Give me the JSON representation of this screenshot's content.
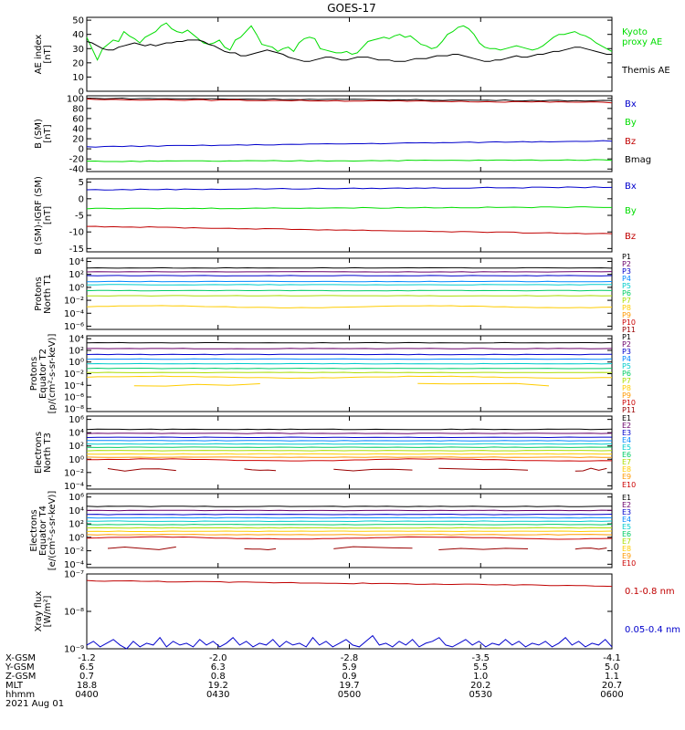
{
  "title": "GOES-17",
  "colors": {
    "black": "#000000",
    "red": "#c00000",
    "green": "#00dd00",
    "blue": "#0000cc",
    "p_colors": [
      "#000000",
      "#6a006a",
      "#0000cc",
      "#0088ff",
      "#00cccc",
      "#00cc66",
      "#aadd00",
      "#ffcc00",
      "#ff9900",
      "#cc0000",
      "#990000"
    ]
  },
  "chart_data": [
    {
      "id": "ae",
      "type": "line",
      "ylabel": [
        "AE index",
        "[nT]"
      ],
      "yticks": [
        "0",
        "10",
        "20",
        "30",
        "40",
        "50"
      ],
      "ylim": [
        0,
        52
      ],
      "legend": [
        {
          "text": "Kyoto",
          "color": "#00dd00"
        },
        {
          "text": "proxy AE",
          "color": "#00dd00"
        },
        {
          "text": "Themis AE",
          "color": "#000000"
        }
      ],
      "series": [
        {
          "color": "#00dd00",
          "values": [
            38,
            30,
            22,
            30,
            33,
            36,
            35,
            42,
            39,
            37,
            34,
            38,
            40,
            42,
            46,
            48,
            44,
            42,
            41,
            43,
            40,
            37,
            34,
            33,
            34,
            36,
            31,
            29,
            36,
            38,
            42,
            46,
            40,
            33,
            32,
            31,
            28,
            30,
            31,
            28,
            34,
            37,
            38,
            37,
            30,
            29,
            28,
            27,
            27,
            28,
            26,
            27,
            31,
            35,
            36,
            37,
            38,
            37,
            39,
            40,
            38,
            39,
            36,
            33,
            32,
            30,
            31,
            35,
            40,
            42,
            45,
            46,
            44,
            40,
            34,
            31,
            30,
            30,
            29,
            30,
            31,
            32,
            31,
            30,
            29,
            30,
            32,
            35,
            38,
            40,
            40,
            41,
            42,
            40,
            39,
            37,
            34,
            32,
            30,
            28
          ]
        },
        {
          "color": "#000000",
          "values": [
            35,
            34,
            32,
            30,
            29,
            29,
            31,
            32,
            33,
            34,
            33,
            32,
            33,
            32,
            33,
            34,
            34,
            35,
            35,
            36,
            36,
            36,
            35,
            33,
            32,
            30,
            28,
            27,
            27,
            25,
            25,
            26,
            27,
            28,
            29,
            28,
            27,
            26,
            24,
            23,
            22,
            21,
            21,
            22,
            23,
            24,
            24,
            23,
            22,
            22,
            23,
            24,
            24,
            24,
            23,
            22,
            22,
            22,
            21,
            21,
            21,
            22,
            23,
            23,
            23,
            24,
            25,
            25,
            25,
            26,
            26,
            25,
            24,
            23,
            22,
            21,
            21,
            22,
            22,
            23,
            24,
            25,
            24,
            24,
            25,
            26,
            26,
            27,
            28,
            28,
            29,
            30,
            31,
            31,
            30,
            29,
            28,
            27,
            26,
            26
          ]
        }
      ]
    },
    {
      "id": "bsm",
      "type": "line",
      "ylabel": [
        "B (SM)",
        "[nT]"
      ],
      "yticks": [
        "-40",
        "-20",
        "0",
        "20",
        "40",
        "60",
        "80",
        "100"
      ],
      "ylim": [
        -45,
        105
      ],
      "legend": [
        {
          "text": "Bx",
          "color": "#0000cc"
        },
        {
          "text": "By",
          "color": "#00dd00"
        },
        {
          "text": "Bz",
          "color": "#c00000"
        },
        {
          "text": "Bmag",
          "color": "#000000"
        }
      ],
      "series": [
        {
          "color": "#000000",
          "from": 100,
          "to": 95
        },
        {
          "color": "#c00000",
          "from": 98,
          "to": 92
        },
        {
          "color": "#0000cc",
          "from": 4,
          "to": 16
        },
        {
          "color": "#00dd00",
          "from": -25,
          "to": -22
        }
      ]
    },
    {
      "id": "bigrf",
      "type": "line",
      "ylabel": [
        "B (SM)-IGRF (SM)",
        "[nT]"
      ],
      "yticks": [
        "-15",
        "-10",
        "-5",
        "0",
        "5"
      ],
      "ylim": [
        -16,
        6
      ],
      "legend": [
        {
          "text": "Bx",
          "color": "#0000cc"
        },
        {
          "text": "By",
          "color": "#00dd00"
        },
        {
          "text": "Bz",
          "color": "#c00000"
        }
      ],
      "series": [
        {
          "color": "#0000cc",
          "from": 2.7,
          "to": 3.5
        },
        {
          "color": "#00dd00",
          "from": -3.0,
          "to": -2.5
        },
        {
          "color": "#c00000",
          "from": -8.3,
          "to": -10.6
        }
      ]
    },
    {
      "id": "pt1",
      "type": "line",
      "log": true,
      "ylabel": [
        "Protons",
        "North T1"
      ],
      "yticks": [
        "10⁴",
        "10²",
        "10⁰",
        "10⁻²",
        "10⁻⁴",
        "10⁻⁶"
      ],
      "ylim": [
        -6.5,
        4.5
      ],
      "legend": [
        {
          "text": "P1",
          "color": "#000000"
        },
        {
          "text": "P2",
          "color": "#6a006a"
        },
        {
          "text": "P3",
          "color": "#0000cc"
        },
        {
          "text": "P4",
          "color": "#0088ff"
        },
        {
          "text": "P5",
          "color": "#00cccc"
        },
        {
          "text": "P6",
          "color": "#00cc66"
        },
        {
          "text": "P7",
          "color": "#aadd00"
        },
        {
          "text": "P8",
          "color": "#ffcc00"
        },
        {
          "text": "P9",
          "color": "#ff9900"
        },
        {
          "text": "P10",
          "color": "#cc0000"
        },
        {
          "text": "P11",
          "color": "#990000"
        }
      ],
      "levels": [
        3.0,
        2.4,
        1.8,
        0.9,
        0.4,
        -0.5,
        -1.3,
        -3.0
      ]
    },
    {
      "id": "pt2",
      "type": "line",
      "log": true,
      "ylabel": [
        "Protons",
        "Equator T2",
        "[p/(cm²-s-sr-keV)]"
      ],
      "yticks": [
        "10⁴",
        "10²",
        "10⁰",
        "10⁻²",
        "10⁻⁴",
        "10⁻⁶",
        "10⁻⁸"
      ],
      "ylim": [
        -8.5,
        4.5
      ],
      "legend": [
        {
          "text": "P1",
          "color": "#000000"
        },
        {
          "text": "P2",
          "color": "#6a006a"
        },
        {
          "text": "P3",
          "color": "#0000cc"
        },
        {
          "text": "P4",
          "color": "#0088ff"
        },
        {
          "text": "P5",
          "color": "#00cccc"
        },
        {
          "text": "P6",
          "color": "#00cc66"
        },
        {
          "text": "P7",
          "color": "#aadd00"
        },
        {
          "text": "P8",
          "color": "#ffcc00"
        },
        {
          "text": "P9",
          "color": "#ff9900"
        },
        {
          "text": "P10",
          "color": "#cc0000"
        },
        {
          "text": "P11",
          "color": "#990000"
        }
      ],
      "levels": [
        3.3,
        2.3,
        1.3,
        0.5,
        -0.3,
        -1.1,
        -1.8,
        -2.6
      ]
    },
    {
      "id": "et3",
      "type": "line",
      "log": true,
      "ylabel": [
        "Electrons",
        "North T3"
      ],
      "yticks": [
        "10⁶",
        "10⁴",
        "10²",
        "10⁰",
        "10⁻²",
        "10⁻⁴"
      ],
      "ylim": [
        -4.5,
        6.5
      ],
      "legend": [
        {
          "text": "E1",
          "color": "#000000"
        },
        {
          "text": "E2",
          "color": "#6a006a"
        },
        {
          "text": "E3",
          "color": "#0000cc"
        },
        {
          "text": "E4",
          "color": "#0088ff"
        },
        {
          "text": "E5",
          "color": "#00cccc"
        },
        {
          "text": "E6",
          "color": "#00cc66"
        },
        {
          "text": "E7",
          "color": "#aadd00"
        },
        {
          "text": "E8",
          "color": "#ffcc00"
        },
        {
          "text": "E9",
          "color": "#ff9900"
        },
        {
          "text": "E10",
          "color": "#cc0000"
        }
      ],
      "levels": [
        4.5,
        3.9,
        3.3,
        2.8,
        2.3,
        1.8,
        1.3,
        0.8,
        0.3,
        -0.1
      ]
    },
    {
      "id": "et4",
      "type": "line",
      "log": true,
      "ylabel": [
        "Electrons",
        "Equator T4",
        "[e/(cm²-s-sr-keV)]"
      ],
      "yticks": [
        "10⁶",
        "10⁴",
        "10²",
        "10⁰",
        "10⁻²",
        "10⁻⁴"
      ],
      "ylim": [
        -4.5,
        6.5
      ],
      "legend": [
        {
          "text": "E1",
          "color": "#000000"
        },
        {
          "text": "E2",
          "color": "#6a006a"
        },
        {
          "text": "E3",
          "color": "#0000cc"
        },
        {
          "text": "E4",
          "color": "#0088ff"
        },
        {
          "text": "E5",
          "color": "#00cccc"
        },
        {
          "text": "E6",
          "color": "#00cc66"
        },
        {
          "text": "E7",
          "color": "#aadd00"
        },
        {
          "text": "E8",
          "color": "#ffcc00"
        },
        {
          "text": "E9",
          "color": "#ff9900"
        },
        {
          "text": "E10",
          "color": "#cc0000"
        }
      ],
      "levels": [
        4.6,
        4.0,
        3.4,
        2.9,
        2.4,
        1.9,
        1.4,
        0.9,
        0.4,
        -0.1
      ]
    },
    {
      "id": "xray",
      "type": "line",
      "log": true,
      "ylabel": [
        "Xray flux",
        "[W/m²]"
      ],
      "yticks": [
        "10⁻⁷",
        "10⁻⁸",
        "10⁻⁹"
      ],
      "ylim": [
        -9,
        -7
      ],
      "legend": [
        {
          "text": "0.1-0.8 nm",
          "color": "#c00000"
        },
        {
          "text": "0.05-0.4 nm",
          "color": "#0000cc"
        }
      ],
      "series": [
        {
          "color": "#c00000",
          "from": -7.18,
          "to": -7.32
        }
      ],
      "blue_values": [
        -8.9,
        -8.8,
        -8.95,
        -8.85,
        -8.75,
        -8.9,
        -9.0,
        -8.8,
        -8.95,
        -8.85,
        -8.9,
        -8.7,
        -8.95,
        -8.8,
        -8.9,
        -8.85,
        -8.95,
        -8.75,
        -8.9,
        -8.8,
        -8.95,
        -8.85,
        -8.7,
        -8.9,
        -8.8,
        -8.95,
        -8.85,
        -8.9,
        -8.75,
        -8.95,
        -8.8,
        -8.9,
        -8.85,
        -8.95,
        -8.7,
        -8.9,
        -8.8,
        -8.95,
        -8.85,
        -8.75,
        -8.9,
        -8.95,
        -8.8,
        -8.65,
        -8.9,
        -8.85,
        -8.95,
        -8.8,
        -8.9,
        -8.75,
        -8.95,
        -8.85,
        -8.8,
        -8.7,
        -8.9,
        -8.95,
        -8.85,
        -8.75,
        -8.9,
        -8.8,
        -8.95,
        -8.85,
        -8.9,
        -8.75,
        -8.9,
        -8.8,
        -8.95,
        -8.85,
        -8.9,
        -8.8,
        -8.95,
        -8.85,
        -8.7,
        -8.9,
        -8.8,
        -8.95,
        -8.85,
        -8.9,
        -8.75,
        -8.95
      ]
    }
  ],
  "orbit": {
    "rows": [
      {
        "label": "X-GSM",
        "values": [
          "-1.2",
          "-2.0",
          "-2.8",
          "-3.5",
          "-4.1"
        ]
      },
      {
        "label": "Y-GSM",
        "values": [
          "6.5",
          "6.3",
          "5.9",
          "5.5",
          "5.0"
        ]
      },
      {
        "label": "Z-GSM",
        "values": [
          "0.7",
          "0.8",
          "0.9",
          "1.0",
          "1.1"
        ]
      },
      {
        "label": "MLT",
        "values": [
          "18.8",
          "19.2",
          "19.7",
          "20.2",
          "20.7"
        ]
      },
      {
        "label": "hhmm",
        "values": [
          "0400",
          "0430",
          "0500",
          "0530",
          "0600"
        ]
      }
    ],
    "date": "2021 Aug 01"
  }
}
